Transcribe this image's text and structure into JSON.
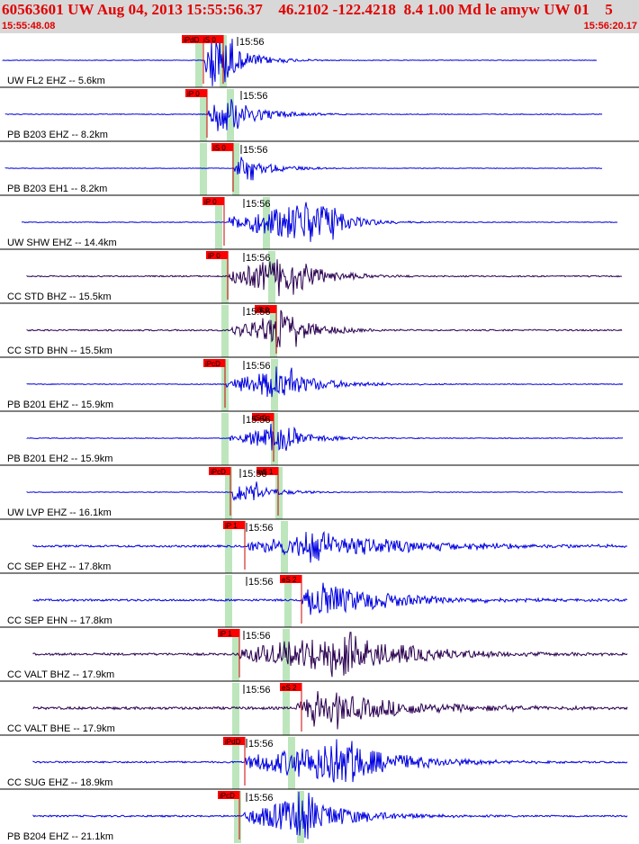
{
  "header": {
    "event_line": "60563601 UW Aug 04, 2013 15:55:56.37    46.2102 -122.4218  8.4 1.00 Md le amyw UW 01    5",
    "time_start": "15:55:48.08",
    "time_end": "15:56:20.17"
  },
  "colors": {
    "pick_box": "#ff0000",
    "pick_line": "#cc0000",
    "trace_blue": "#0000e0",
    "trace_purple": "#2a0050",
    "window_band": "#bde6bd",
    "header_text": "#e00000",
    "header_bg": "#d8d8d8"
  },
  "traces": [
    {
      "label": "UW FL2 EHZ -- 5.6km",
      "color": "blue",
      "minute_label": "15:56",
      "picks": [
        {
          "text": "iPdD"
        },
        {
          "text": "iS 0"
        }
      ]
    },
    {
      "label": "PB B203 EHZ -- 8.2km",
      "color": "blue",
      "minute_label": "15:56",
      "picks": [
        {
          "text": "iP 0"
        }
      ]
    },
    {
      "label": "PB B203 EH1 -- 8.2km",
      "color": "blue",
      "minute_label": "15:56",
      "picks": [
        {
          "text": "iS 0"
        }
      ]
    },
    {
      "label": "UW SHW EHZ -- 14.4km",
      "color": "blue",
      "minute_label": "15:56",
      "picks": [
        {
          "text": "iP 0"
        }
      ]
    },
    {
      "label": "CC STD BHZ -- 15.5km",
      "color": "purple",
      "minute_label": "15:56",
      "picks": [
        {
          "text": "iP 0"
        }
      ]
    },
    {
      "label": "CC STD BHN -- 15.5km",
      "color": "purple",
      "minute_label": "15:56",
      "picks": [
        {
          "text": "iS 0"
        }
      ]
    },
    {
      "label": "PB B201 EHZ -- 15.9km",
      "color": "blue",
      "minute_label": "15:56",
      "picks": [
        {
          "text": "iPcD"
        }
      ]
    },
    {
      "label": "PB B201 EH2 -- 15.9km",
      "color": "blue",
      "minute_label": "15:56",
      "picks": [
        {
          "text": "iS 0"
        }
      ]
    },
    {
      "label": "UW LVP EHZ -- 16.1km",
      "color": "blue",
      "minute_label": "15:56",
      "picks": [
        {
          "text": "iPcD"
        },
        {
          "text": "eS 1"
        }
      ]
    },
    {
      "label": "CC SEP EHZ -- 17.8km",
      "color": "blue",
      "minute_label": "15:56",
      "picks": [
        {
          "text": "iP 1"
        }
      ]
    },
    {
      "label": "CC SEP EHN -- 17.8km",
      "color": "blue",
      "minute_label": "15:56",
      "picks": [
        {
          "text": "eS 2"
        }
      ]
    },
    {
      "label": "CC VALT BHZ -- 17.9km",
      "color": "purple",
      "minute_label": "15:56",
      "picks": [
        {
          "text": "iP 1"
        }
      ]
    },
    {
      "label": "CC VALT BHE -- 17.9km",
      "color": "purple",
      "minute_label": "15:56",
      "picks": [
        {
          "text": "eS 2"
        }
      ]
    },
    {
      "label": "CC SUG EHZ -- 18.9km",
      "color": "blue",
      "minute_label": "15:56",
      "picks": [
        {
          "text": "iPdD"
        }
      ]
    },
    {
      "label": "PB B204 EHZ -- 21.1km",
      "color": "blue",
      "minute_label": "15:56",
      "picks": [
        {
          "text": "iPcD"
        }
      ]
    }
  ]
}
